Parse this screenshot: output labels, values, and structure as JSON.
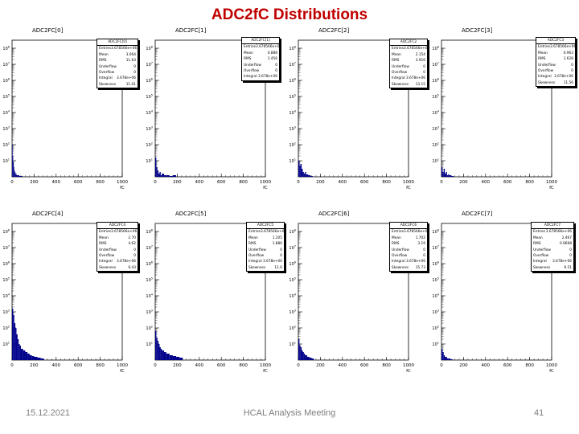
{
  "slide": {
    "title": "ADC2fC Distributions",
    "date": "15.12.2021",
    "meeting": "HCAL Analysis Meeting",
    "page": "41"
  },
  "colors": {
    "title": "#c00000",
    "histogram": "#00008b",
    "footer": "#7f7f7f"
  },
  "chart_data": [
    {
      "type": "bar",
      "title": "ADC2FC[0]",
      "stats": {
        "name": "ADC2FC[0]",
        "entries": "3.678566e+06",
        "mean": "3.064",
        "rms": "11.63",
        "underflow": "0",
        "overflow": "0",
        "integral": "3.678e+06",
        "skewness": "11.01"
      },
      "xticks": [
        "0",
        "200",
        "400",
        "600",
        "800",
        "1000"
      ],
      "xlabel": "fC",
      "yscale": "log",
      "ytick_exponents": [
        1,
        2,
        3,
        4,
        5,
        6,
        7,
        8
      ],
      "xlim": [
        0,
        1000
      ],
      "bins": {
        "x": [
          0,
          5,
          10,
          15,
          20,
          25,
          30,
          40,
          50,
          65,
          80
        ],
        "log10_counts": [
          2.0,
          1.3,
          0.9,
          0.6,
          0.4,
          0.3,
          0.2,
          0.1,
          0.1,
          0.05,
          0.05
        ]
      }
    },
    {
      "type": "bar",
      "title": "ADC2FC[1]",
      "stats": {
        "name": "ADC2FC[1]",
        "entries": "3.678566e+06",
        "mean": "0.888",
        "rms": "1.456",
        "underflow": "0",
        "overflow": "0",
        "integral": "3.678e+06"
      },
      "xticks": [
        "0",
        "200",
        "400",
        "600",
        "800",
        "1000"
      ],
      "xlabel": "fC",
      "yscale": "log",
      "ytick_exponents": [
        1,
        2,
        3,
        4,
        5,
        6,
        7,
        8
      ],
      "xlim": [
        0,
        1000
      ],
      "bins": {
        "x": [
          0,
          10,
          20,
          30,
          40,
          50,
          60,
          80,
          100,
          130,
          160
        ],
        "log10_counts": [
          1.2,
          0.6,
          0.4,
          0.2,
          0.3,
          0.1,
          0.2,
          0.1,
          0.1,
          0.05,
          0.1
        ]
      }
    },
    {
      "type": "bar",
      "title": "ADC2FC[2]",
      "stats": {
        "name": "ADC2FC2",
        "entries": "3.678566e+06",
        "mean": "2.154",
        "rms": "3.916",
        "underflow": "0",
        "overflow": "0",
        "integral": "3.678e+06",
        "skewness": "13.15"
      },
      "xticks": [
        "0",
        "200",
        "400",
        "600",
        "800",
        "1000"
      ],
      "xlabel": "fC",
      "yscale": "log",
      "ytick_exponents": [
        1,
        2,
        3,
        4,
        5,
        6,
        7,
        8
      ],
      "xlim": [
        0,
        1000
      ],
      "bins": {
        "x": [
          0,
          10,
          20,
          30,
          40,
          50,
          60,
          70,
          90,
          110
        ],
        "log10_counts": [
          1.0,
          0.7,
          0.8,
          0.5,
          0.3,
          0.2,
          0.3,
          0.15,
          0.1,
          0.05
        ]
      }
    },
    {
      "type": "bar",
      "title": "ADC2FC[3]",
      "stats": {
        "name": "ADC2FC3",
        "entries": "3.678566e+06",
        "mean": "0.963",
        "rms": "1.628",
        "underflow": "0",
        "overflow": "0",
        "integral": "3.678e+06",
        "skewness": "11.56"
      },
      "xticks": [
        "0",
        "200",
        "400",
        "600",
        "800",
        "1000"
      ],
      "xlabel": "fC",
      "yscale": "log",
      "ytick_exponents": [
        1,
        2,
        3,
        4,
        5,
        6,
        7,
        8
      ],
      "xlim": [
        0,
        1000
      ],
      "bins": {
        "x": [
          0,
          10,
          20,
          30,
          40,
          50,
          60,
          70,
          90
        ],
        "log10_counts": [
          0.6,
          0.3,
          0.5,
          0.2,
          0.3,
          0.1,
          0.15,
          0.1,
          0.05
        ]
      }
    },
    {
      "type": "bar",
      "title": "ADC2FC[4]",
      "stats": {
        "name": "ADC2FC4",
        "entries": "3.678566e+06",
        "mean": "2.70",
        "rms": "4.62",
        "underflow": "0",
        "overflow": "0",
        "integral": "3.678e+06",
        "skewness": "9.43"
      },
      "xticks": [
        "0",
        "200",
        "400",
        "600",
        "800",
        "1000"
      ],
      "xlabel": "fC",
      "yscale": "log",
      "ytick_exponents": [
        1,
        2,
        3,
        4,
        5,
        6,
        7,
        8
      ],
      "xlim": [
        0,
        1000
      ],
      "bins": {
        "x": [
          0,
          10,
          20,
          30,
          40,
          50,
          60,
          70,
          80,
          100,
          120,
          140,
          160,
          180,
          200,
          230,
          260
        ],
        "log10_counts": [
          3.2,
          2.8,
          2.3,
          2.0,
          1.6,
          1.3,
          1.0,
          0.9,
          0.7,
          0.6,
          0.5,
          0.4,
          0.3,
          0.25,
          0.2,
          0.15,
          0.1
        ]
      }
    },
    {
      "type": "bar",
      "title": "ADC2FC[5]",
      "stats": {
        "name": "ADC2FC5",
        "entries": "3.678566e+06",
        "mean": "1.205",
        "rms": "1.886",
        "underflow": "0",
        "overflow": "0",
        "integral": "3.678e+06",
        "skewness": "11.6"
      },
      "xticks": [
        "0",
        "200",
        "400",
        "600",
        "800",
        "1000"
      ],
      "xlabel": "fC",
      "yscale": "log",
      "ytick_exponents": [
        1,
        2,
        3,
        4,
        5,
        6,
        7,
        8
      ],
      "xlim": [
        0,
        1000
      ],
      "bins": {
        "x": [
          0,
          10,
          20,
          30,
          40,
          50,
          60,
          80,
          100,
          130,
          160,
          190,
          220
        ],
        "log10_counts": [
          1.8,
          1.4,
          1.2,
          1.0,
          0.8,
          0.7,
          0.6,
          0.5,
          0.4,
          0.3,
          0.25,
          0.2,
          0.15
        ]
      }
    },
    {
      "type": "bar",
      "title": "ADC2FC[6]",
      "stats": {
        "name": "ADC2FC6",
        "entries": "3.678566e+06",
        "mean": "1.702",
        "rms": "3.19",
        "underflow": "0",
        "overflow": "0",
        "integral": "3.678e+06",
        "skewness": "15.73"
      },
      "xticks": [
        "0",
        "200",
        "400",
        "600",
        "800",
        "1000"
      ],
      "xlabel": "fC",
      "yscale": "log",
      "ytick_exponents": [
        1,
        2,
        3,
        4,
        5,
        6,
        7,
        8
      ],
      "xlim": [
        0,
        1000
      ],
      "bins": {
        "x": [
          0,
          10,
          20,
          30,
          40,
          50,
          60,
          80,
          100,
          120
        ],
        "log10_counts": [
          1.3,
          0.9,
          0.8,
          0.6,
          0.5,
          0.4,
          0.3,
          0.2,
          0.15,
          0.1
        ]
      }
    },
    {
      "type": "bar",
      "title": "ADC2FC[7]",
      "stats": {
        "name": "ADC2FC7",
        "entries": "3.678566e+06",
        "mean": "2.467",
        "rms": "0.9698",
        "underflow": "0",
        "overflow": "0",
        "integral": "3.678e+06",
        "skewness": "9.51"
      },
      "xticks": [
        "0",
        "200",
        "400",
        "600",
        "800",
        "1000"
      ],
      "xlabel": "fC",
      "yscale": "log",
      "ytick_exponents": [
        1,
        2,
        3,
        4,
        5,
        6,
        7,
        8
      ],
      "xlim": [
        0,
        1000
      ],
      "bins": {
        "x": [
          0,
          10,
          20,
          30,
          40,
          50,
          60,
          80
        ],
        "log10_counts": [
          0.7,
          0.5,
          0.3,
          0.2,
          0.2,
          0.1,
          0.1,
          0.05
        ]
      }
    }
  ]
}
